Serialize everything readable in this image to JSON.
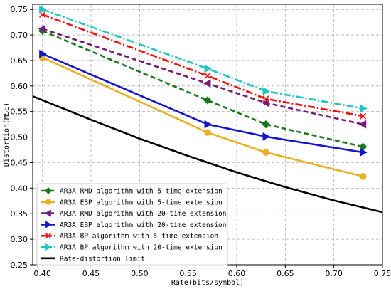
{
  "chart_data": {
    "type": "line",
    "xlabel": "Rate(bits/symbol)",
    "ylabel": "Distortion(MSE)",
    "xlim": [
      0.39,
      0.75
    ],
    "ylim": [
      0.25,
      0.76
    ],
    "xticks": [
      "0.40",
      "0.45",
      "0.50",
      "0.55",
      "0.60",
      "0.65",
      "0.70",
      "0.75"
    ],
    "yticks": [
      "0.25",
      "0.30",
      "0.35",
      "0.40",
      "0.45",
      "0.50",
      "0.55",
      "0.60",
      "0.65",
      "0.70",
      "0.75"
    ],
    "grid": true,
    "legend_position": "lower-left",
    "series": [
      {
        "name": "AR3A RMD algorithm with 5-time extension",
        "color": "#1a7a1a",
        "dash": "dashed",
        "marker": "diamond",
        "x": [
          0.4,
          0.57,
          0.63,
          0.73
        ],
        "y": [
          0.708,
          0.572,
          0.525,
          0.481
        ]
      },
      {
        "name": "AR3A EBP algorithm with 5-time extension",
        "color": "#e6b020",
        "dash": "solid",
        "marker": "circle",
        "x": [
          0.4,
          0.57,
          0.63,
          0.73
        ],
        "y": [
          0.656,
          0.509,
          0.47,
          0.423
        ]
      },
      {
        "name": "AR3A RMD algorithm with 20-time extension",
        "color": "#7a1a7a",
        "dash": "dashed",
        "marker": "triangle-left",
        "x": [
          0.4,
          0.57,
          0.63,
          0.73
        ],
        "y": [
          0.712,
          0.605,
          0.567,
          0.525
        ]
      },
      {
        "name": "AR3A EBP algorithm with 20-time extension",
        "color": "#1515cc",
        "dash": "solid",
        "marker": "triangle-right",
        "x": [
          0.4,
          0.57,
          0.63,
          0.73
        ],
        "y": [
          0.663,
          0.525,
          0.501,
          0.47
        ]
      },
      {
        "name": "AR3A BP algorithm with 5-time extension",
        "color": "#ee1111",
        "dash": "dashdot",
        "marker": "x",
        "x": [
          0.4,
          0.57,
          0.63,
          0.73
        ],
        "y": [
          0.74,
          0.62,
          0.575,
          0.541
        ]
      },
      {
        "name": "AR3A BP algorithm with 20-time extension",
        "color": "#22c4c4",
        "dash": "dashdot",
        "marker": "triangle-right",
        "x": [
          0.4,
          0.57,
          0.63,
          0.73
        ],
        "y": [
          0.75,
          0.634,
          0.59,
          0.556
        ]
      },
      {
        "name": "Rate-distortion limit",
        "color": "#000000",
        "dash": "solid",
        "marker": "none",
        "x": [
          0.39,
          0.45,
          0.5,
          0.55,
          0.6,
          0.65,
          0.7,
          0.75
        ],
        "y": [
          0.58,
          0.534,
          0.497,
          0.463,
          0.431,
          0.402,
          0.376,
          0.353
        ]
      }
    ]
  }
}
